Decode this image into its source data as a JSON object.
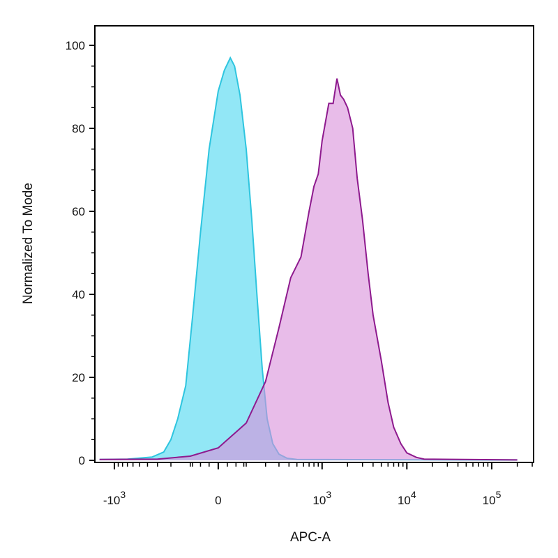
{
  "chart_data": {
    "type": "area",
    "xlabel": "APC-A",
    "ylabel": "Normalized To Mode",
    "x_scale": "biexponential",
    "xlim": [
      -1500,
      200000
    ],
    "ylim": [
      0,
      104
    ],
    "grid": false,
    "x_ticks": [
      {
        "value": -1000,
        "base": "-10",
        "exp": "3"
      },
      {
        "value": 0,
        "base": "0",
        "exp": ""
      },
      {
        "value": 1000,
        "base": "10",
        "exp": "3"
      },
      {
        "value": 10000,
        "base": "10",
        "exp": "4"
      },
      {
        "value": 100000,
        "base": "10",
        "exp": "5"
      }
    ],
    "y_ticks": [
      0,
      20,
      40,
      60,
      80,
      100
    ],
    "series": [
      {
        "color": "#2ec5df",
        "fill": "#7fe3f4",
        "points": [
          [
            -1500,
            0.2
          ],
          [
            -700,
            0.3
          ],
          [
            -350,
            0.8
          ],
          [
            -250,
            2
          ],
          [
            -200,
            5
          ],
          [
            -160,
            10
          ],
          [
            -120,
            18
          ],
          [
            -90,
            35
          ],
          [
            -60,
            55
          ],
          [
            -30,
            75
          ],
          [
            0,
            89
          ],
          [
            20,
            94
          ],
          [
            40,
            97
          ],
          [
            55,
            95
          ],
          [
            75,
            88
          ],
          [
            100,
            75
          ],
          [
            125,
            58
          ],
          [
            150,
            40
          ],
          [
            180,
            22
          ],
          [
            210,
            10
          ],
          [
            250,
            4
          ],
          [
            300,
            1.5
          ],
          [
            380,
            0.5
          ],
          [
            500,
            0.2
          ],
          [
            200000,
            0.1
          ]
        ]
      },
      {
        "color": "#8e1a8e",
        "fill": "#d98fdb",
        "points": [
          [
            -1500,
            0.2
          ],
          [
            -300,
            0.3
          ],
          [
            -100,
            1
          ],
          [
            0,
            3
          ],
          [
            100,
            9
          ],
          [
            200,
            19
          ],
          [
            300,
            32
          ],
          [
            420,
            44
          ],
          [
            560,
            49
          ],
          [
            700,
            60
          ],
          [
            800,
            66
          ],
          [
            900,
            69
          ],
          [
            1000,
            77
          ],
          [
            1200,
            86
          ],
          [
            1350,
            86
          ],
          [
            1500,
            92
          ],
          [
            1650,
            88
          ],
          [
            1800,
            87
          ],
          [
            2000,
            85
          ],
          [
            2300,
            80
          ],
          [
            2600,
            68
          ],
          [
            3000,
            58
          ],
          [
            3500,
            45
          ],
          [
            4000,
            35
          ],
          [
            5000,
            24
          ],
          [
            6000,
            14
          ],
          [
            7000,
            8
          ],
          [
            8500,
            4
          ],
          [
            10000,
            1.8
          ],
          [
            13000,
            0.7
          ],
          [
            16000,
            0.3
          ],
          [
            200000,
            0.1
          ]
        ]
      }
    ]
  }
}
